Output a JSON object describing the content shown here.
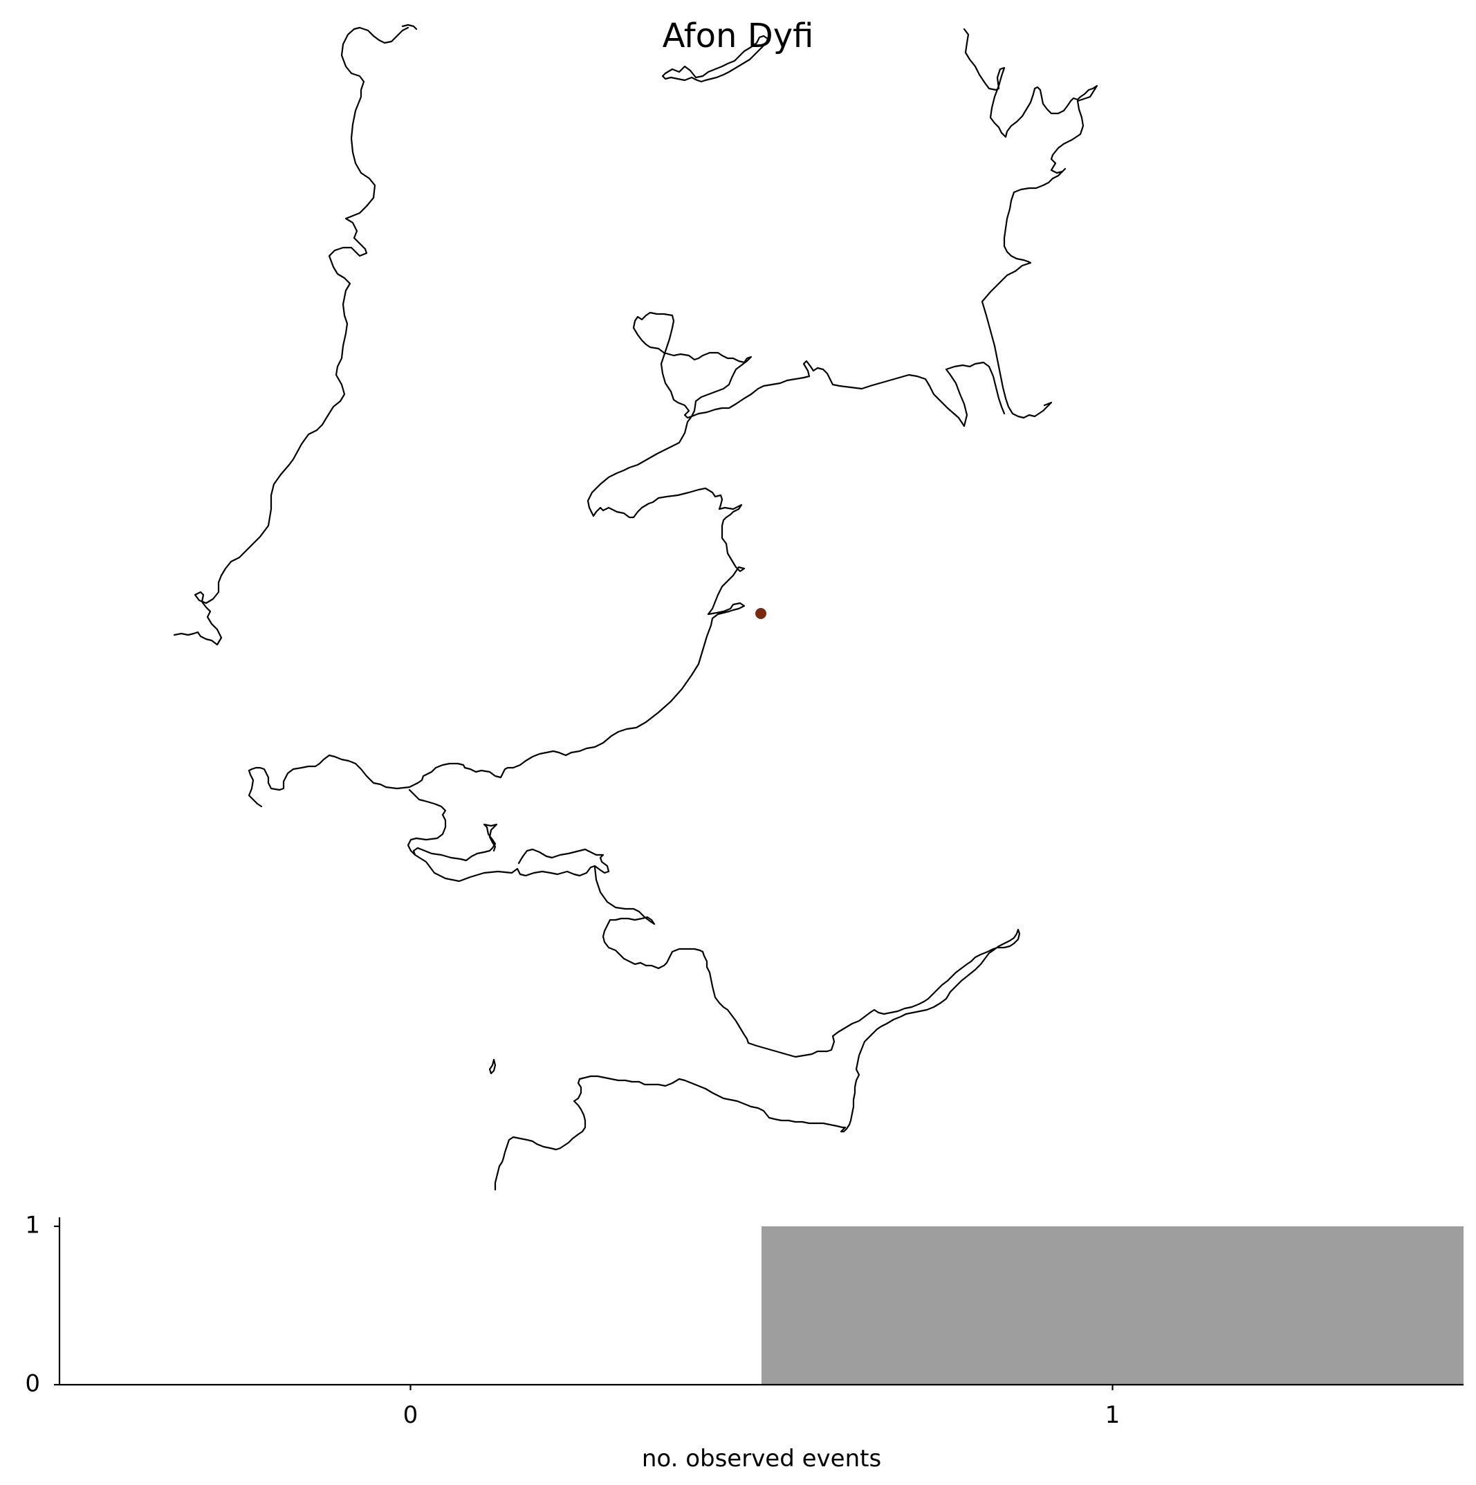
{
  "map": {
    "title": "Afon Dyfi",
    "marker_color": "#7a2a10"
  },
  "chart_data": {
    "type": "bar",
    "categories": [
      "0",
      "1"
    ],
    "values": [
      0,
      1
    ],
    "xlabel": "no. observed events",
    "ylabel": "",
    "ylim": [
      0,
      1
    ],
    "yticks": [
      "0",
      "1"
    ],
    "bar_color": "#9e9e9e"
  }
}
